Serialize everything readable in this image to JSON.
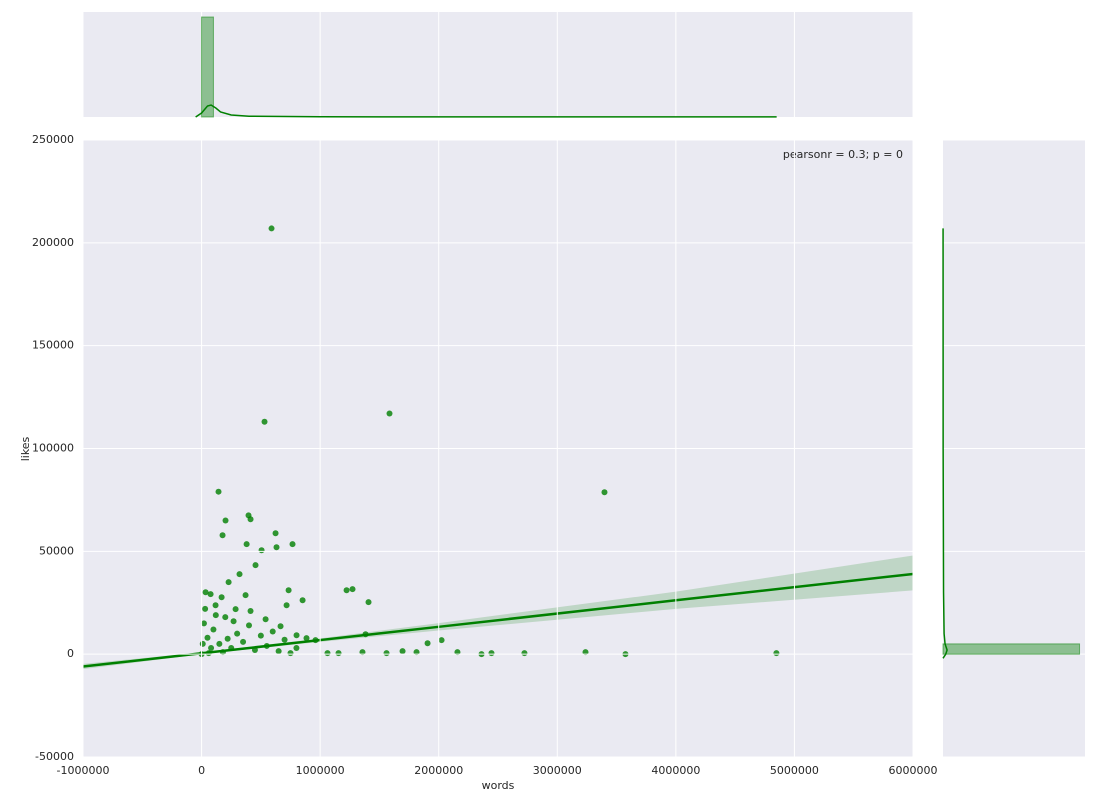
{
  "chart_data": {
    "type": "scatter",
    "xlabel": "words",
    "ylabel": "likes",
    "annotation": "pearsonr = 0.3; p = 0",
    "xlim": [
      -1000000,
      6000000
    ],
    "ylim": [
      -50000,
      250000
    ],
    "xticks": [
      -1000000,
      0,
      1000000,
      2000000,
      3000000,
      4000000,
      5000000,
      6000000
    ],
    "yticks": [
      -50000,
      0,
      50000,
      100000,
      150000,
      200000,
      250000
    ],
    "grid": true,
    "color": "#008000",
    "x": [
      590000,
      531000,
      1585000,
      3398000,
      143000,
      177000,
      202000,
      396000,
      413000,
      624000,
      767000,
      380000,
      506000,
      632000,
      1273000,
      1223000,
      1408000,
      1383000,
      734000,
      852000,
      455000,
      320000,
      228000,
      34000,
      76000,
      169000,
      371000,
      717000,
      4848000,
      3575000,
      3238000,
      2723000,
      2445000,
      2361000,
      2158000,
      2024000,
      1906000,
      1813000,
      1695000,
      1560000,
      1357000,
      1155000,
      1062000,
      961000,
      885000,
      801000,
      666000,
      540000,
      413000,
      287000,
      118000,
      0,
      20000,
      50000,
      100000,
      150000,
      200000,
      250000,
      300000,
      350000,
      400000,
      450000,
      500000,
      550000,
      600000,
      650000,
      700000,
      750000,
      800000,
      30000,
      80000,
      120000,
      180000,
      220000,
      270000,
      60000,
      10000
    ],
    "y": [
      207000,
      113000,
      117000,
      78700,
      79000,
      57800,
      65000,
      67500,
      65600,
      58800,
      53500,
      53500,
      50500,
      52000,
      31600,
      31100,
      25300,
      9700,
      31100,
      26200,
      43300,
      38900,
      35000,
      30100,
      29200,
      27700,
      28700,
      23800,
      500,
      0,
      1000,
      500,
      500,
      0,
      1000,
      6800,
      5300,
      1000,
      1500,
      500,
      1000,
      500,
      500,
      6800,
      7800,
      9200,
      13600,
      17000,
      21000,
      21900,
      23800,
      0,
      15000,
      8000,
      12000,
      5000,
      18000,
      3000,
      10000,
      6000,
      14000,
      2000,
      9000,
      4000,
      11000,
      1500,
      7000,
      500,
      3000,
      22000,
      3000,
      19000,
      1000,
      7500,
      16000,
      500,
      5000
    ],
    "regression": {
      "x": [
        -1000000,
        0,
        1000000,
        2000000,
        4000000,
        6000000
      ],
      "y": [
        -6000,
        430,
        6860,
        13300,
        26200,
        39000
      ],
      "ci_lower": [
        -7300,
        0,
        6000,
        11500,
        22000,
        31000
      ],
      "ci_upper": [
        -4700,
        860,
        7700,
        15100,
        30400,
        48000
      ]
    },
    "marginal_x": {
      "bins": [
        0,
        100000
      ],
      "counts": [
        1.0
      ],
      "ylim": [
        0,
        1.05
      ],
      "kde": {
        "x": [
          -50000,
          0,
          50000,
          80000,
          120000,
          160000,
          250000,
          400000,
          1000000,
          4850000
        ],
        "density": [
          0,
          0.04,
          0.11,
          0.12,
          0.09,
          0.05,
          0.02,
          0.008,
          0.002,
          0.001
        ]
      }
    },
    "marginal_y": {
      "bins": [
        0,
        5000
      ],
      "counts": [
        1.0
      ],
      "xlim": [
        0,
        1.04
      ],
      "kde": {
        "y": [
          -2000,
          0,
          2000,
          5000,
          10000,
          30000,
          100000,
          207000
        ],
        "density": [
          0,
          0.02,
          0.03,
          0.015,
          0.008,
          0.004,
          0.001,
          0.0005
        ]
      }
    }
  }
}
